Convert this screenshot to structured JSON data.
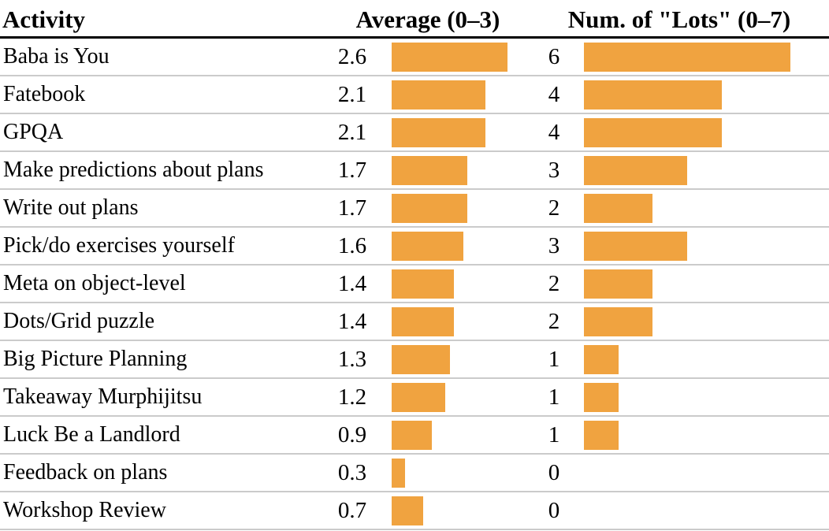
{
  "colors": {
    "bar": "#F0A340",
    "row_divider": "#CBCBCB",
    "header_underline": "#000000",
    "text": "#000000"
  },
  "chart_data": {
    "type": "table",
    "description": "Table of workshop activities with inline horizontal bar charts for average rating and count of 'Lots' responses",
    "legend_position": "none",
    "columns": [
      {
        "label": "Activity"
      },
      {
        "label": "Average (0–3)",
        "min": 0,
        "max": 3
      },
      {
        "label": "Num. of \"Lots\" (0–7)",
        "min": 0,
        "max": 7
      }
    ],
    "rows": [
      {
        "activity": "Baba is You",
        "average": 2.6,
        "lots": 6
      },
      {
        "activity": "Fatebook",
        "average": 2.1,
        "lots": 4
      },
      {
        "activity": "GPQA",
        "average": 2.1,
        "lots": 4
      },
      {
        "activity": "Make predictions about plans",
        "average": 1.7,
        "lots": 3
      },
      {
        "activity": "Write out plans",
        "average": 1.7,
        "lots": 2
      },
      {
        "activity": "Pick/do exercises yourself",
        "average": 1.6,
        "lots": 3
      },
      {
        "activity": "Meta on object-level",
        "average": 1.4,
        "lots": 2
      },
      {
        "activity": "Dots/Grid puzzle",
        "average": 1.4,
        "lots": 2
      },
      {
        "activity": "Big Picture Planning",
        "average": 1.3,
        "lots": 1
      },
      {
        "activity": "Takeaway Murphijitsu",
        "average": 1.2,
        "lots": 1
      },
      {
        "activity": "Luck Be a Landlord",
        "average": 0.9,
        "lots": 1
      },
      {
        "activity": "Feedback on plans",
        "average": 0.3,
        "lots": 0
      },
      {
        "activity": "Workshop Review",
        "average": 0.7,
        "lots": 0
      }
    ]
  }
}
